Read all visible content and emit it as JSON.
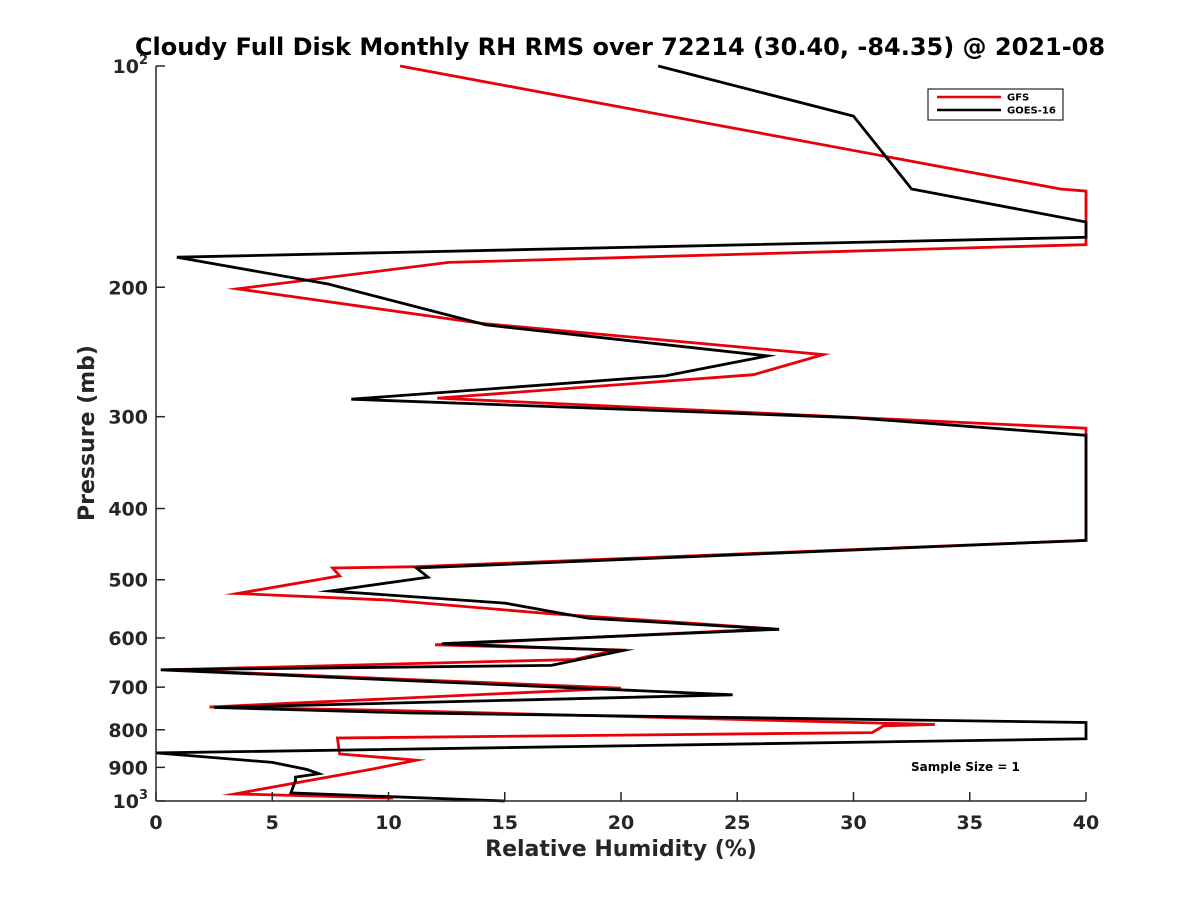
{
  "chart_data": {
    "type": "line",
    "title": "Cloudy Full Disk Monthly RH RMS over 72214 (30.40, -84.35) @ 2021-08",
    "xlabel": "Relative Humidity (%)",
    "ylabel": "Pressure (mb)",
    "xlim": [
      0,
      40
    ],
    "ylim": [
      100,
      1000
    ],
    "y_scale": "log",
    "y_reversed": true,
    "x_ticks": [
      0,
      5,
      10,
      15,
      20,
      25,
      30,
      35,
      40
    ],
    "x_tick_labels": [
      "0",
      "5",
      "10",
      "15",
      "20",
      "25",
      "30",
      "35",
      "40"
    ],
    "y_ticks": [
      100,
      200,
      300,
      400,
      500,
      600,
      700,
      800,
      900,
      1000
    ],
    "y_tick_labels": [
      {
        "base": "10",
        "exp": "2"
      },
      {
        "base": "200",
        "exp": ""
      },
      {
        "base": "300",
        "exp": ""
      },
      {
        "base": "400",
        "exp": ""
      },
      {
        "base": "500",
        "exp": ""
      },
      {
        "base": "600",
        "exp": ""
      },
      {
        "base": "700",
        "exp": ""
      },
      {
        "base": "800",
        "exp": ""
      },
      {
        "base": "900",
        "exp": ""
      },
      {
        "base": "10",
        "exp": "3"
      }
    ],
    "legend_position": "top-right",
    "annotation": "Sample Size = 1",
    "series": [
      {
        "name": "GFS",
        "color": "#e8000b",
        "points": [
          [
            10.5,
            100
          ],
          [
            38.9,
            147
          ],
          [
            40,
            148
          ],
          [
            40,
            175
          ],
          [
            12.6,
            185
          ],
          [
            3.5,
            201
          ],
          [
            14.0,
            224
          ],
          [
            28.7,
            247
          ],
          [
            25.7,
            263
          ],
          [
            12.1,
            283
          ],
          [
            40,
            311
          ],
          [
            40,
            442
          ],
          [
            11.2,
            480
          ],
          [
            7.6,
            482
          ],
          [
            7.9,
            494
          ],
          [
            3.5,
            522
          ],
          [
            10.0,
            533
          ],
          [
            16.9,
            556
          ],
          [
            26.5,
            583
          ],
          [
            12.0,
            613
          ],
          [
            19.8,
            623
          ],
          [
            18.0,
            642
          ],
          [
            0.5,
            663
          ],
          [
            20.0,
            702
          ],
          [
            2.3,
            745
          ],
          [
            10.0,
            753
          ],
          [
            33.5,
            787
          ],
          [
            31.3,
            790
          ],
          [
            30.8,
            807
          ],
          [
            7.8,
            821
          ],
          [
            7.9,
            863
          ],
          [
            11.2,
            880
          ],
          [
            9.3,
            905
          ],
          [
            3.4,
            978
          ],
          [
            10.2,
            991
          ]
        ]
      },
      {
        "name": "GOES-16",
        "color": "#000000",
        "points": [
          [
            21.6,
            100
          ],
          [
            30.0,
            117
          ],
          [
            32.5,
            147
          ],
          [
            40,
            163
          ],
          [
            40,
            171
          ],
          [
            0.9,
            182
          ],
          [
            7.4,
            198
          ],
          [
            14.2,
            225
          ],
          [
            26.3,
            248
          ],
          [
            21.9,
            264
          ],
          [
            8.4,
            284
          ],
          [
            30.0,
            301
          ],
          [
            40,
            318
          ],
          [
            40,
            442
          ],
          [
            11.2,
            482
          ],
          [
            11.7,
            496
          ],
          [
            7.5,
            518
          ],
          [
            15.0,
            538
          ],
          [
            18.6,
            564
          ],
          [
            26.8,
            584
          ],
          [
            12.3,
            611
          ],
          [
            20.1,
            624
          ],
          [
            17.0,
            654
          ],
          [
            0.2,
            663
          ],
          [
            24.8,
            717
          ],
          [
            2.5,
            746
          ],
          [
            11.0,
            759
          ],
          [
            40,
            782
          ],
          [
            40,
            823
          ],
          [
            0.0,
            860
          ],
          [
            5.0,
            886
          ],
          [
            6.5,
            906
          ],
          [
            7.0,
            918
          ],
          [
            6.0,
            928
          ],
          [
            6.0,
            938
          ],
          [
            5.8,
            975
          ],
          [
            15.0,
            1000
          ]
        ]
      }
    ]
  }
}
